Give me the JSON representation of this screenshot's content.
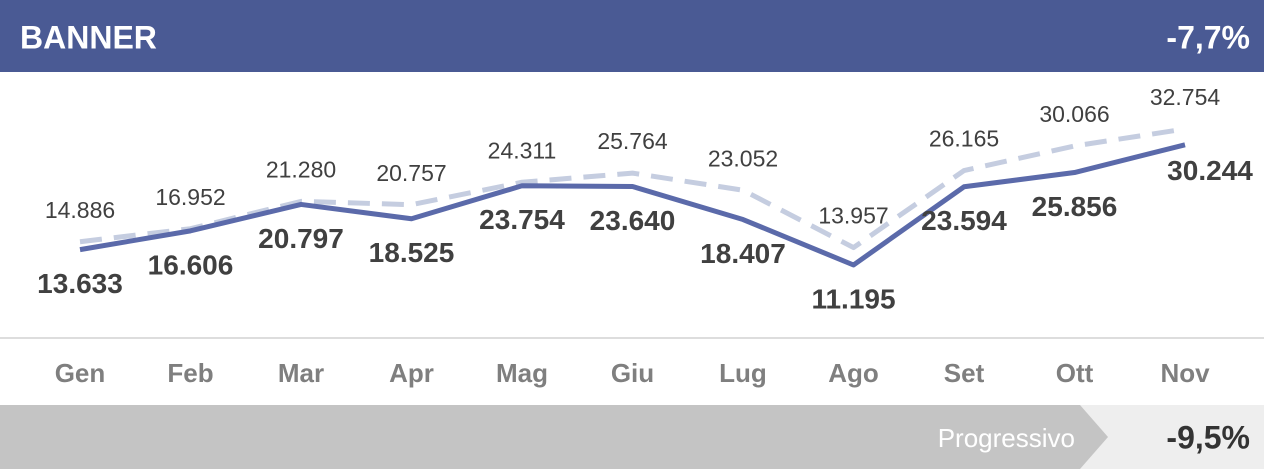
{
  "chart_data": {
    "type": "line",
    "title": "BANNER",
    "title_annotation": "-7,7%",
    "footer_label": "Progressivo",
    "footer_value": "-9,5%",
    "categories": [
      "Gen",
      "Feb",
      "Mar",
      "Apr",
      "Mag",
      "Giu",
      "Lug",
      "Ago",
      "Set",
      "Ott",
      "Nov"
    ],
    "series": [
      {
        "color": "#c5cde0",
        "dashed": true,
        "values": [
          14886,
          16952,
          21280,
          20757,
          24311,
          25764,
          23052,
          13957,
          26165,
          30066,
          32754
        ],
        "value_labels": [
          "14.886",
          "16.952",
          "21.280",
          "20.757",
          "24.311",
          "25.764",
          "23.052",
          "13.957",
          "26.165",
          "30.066",
          "32.754"
        ]
      },
      {
        "color": "#5b6aaa",
        "dashed": false,
        "values": [
          13633,
          16606,
          20797,
          18525,
          23754,
          23640,
          18407,
          11195,
          23594,
          25856,
          30244
        ],
        "value_labels": [
          "13.633",
          "16.606",
          "20.797",
          "18.525",
          "23.754",
          "23.640",
          "18.407",
          "11.195",
          "23.594",
          "25.856",
          "30.244"
        ]
      }
    ]
  }
}
